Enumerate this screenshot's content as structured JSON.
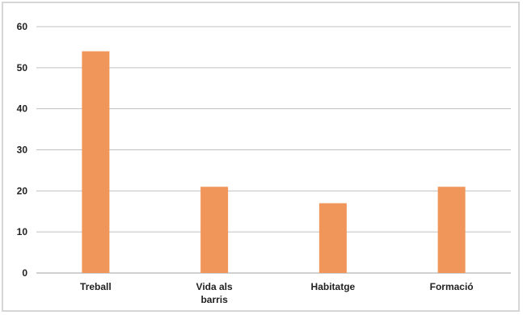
{
  "chart_data": {
    "type": "bar",
    "categories": [
      [
        "Treball"
      ],
      [
        "Vida als",
        "barris"
      ],
      [
        "Habitatge"
      ],
      [
        "Formació"
      ]
    ],
    "values": [
      54,
      21,
      17,
      21
    ],
    "ylim": [
      0,
      60
    ],
    "yticks": [
      0,
      10,
      20,
      30,
      40,
      50,
      60
    ],
    "grid": true,
    "bar_color": "#f0965a",
    "grid_color": "#c0c0c0"
  }
}
